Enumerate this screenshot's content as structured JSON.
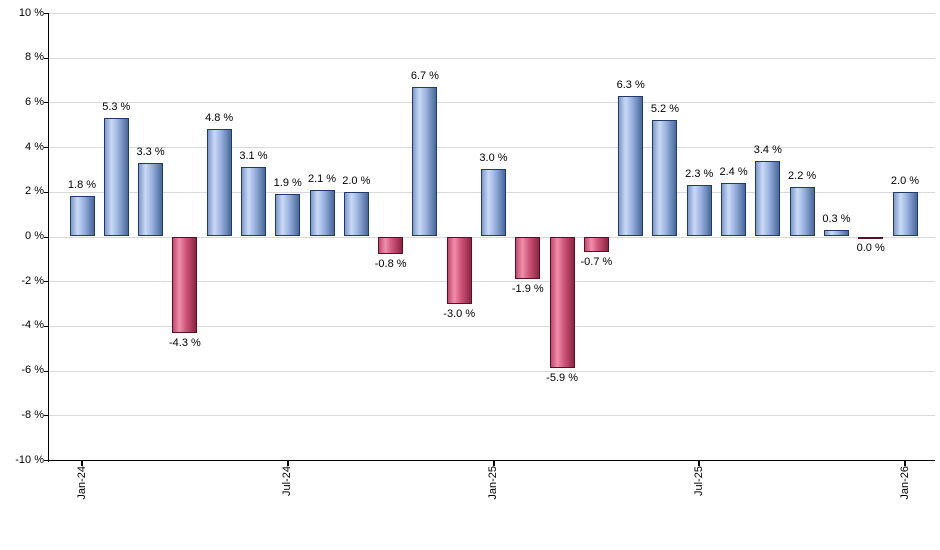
{
  "chart_data": {
    "type": "bar",
    "title": "",
    "xlabel": "",
    "ylabel": "",
    "unit": "%",
    "ylim": [
      -10,
      10
    ],
    "grid": true,
    "legend": null,
    "y_ticks": [
      {
        "value": 10,
        "label": "10 %"
      },
      {
        "value": 8,
        "label": "8 %"
      },
      {
        "value": 6,
        "label": "6 %"
      },
      {
        "value": 4,
        "label": "4 %"
      },
      {
        "value": 2,
        "label": "2 %"
      },
      {
        "value": 0,
        "label": "0 %"
      },
      {
        "value": -2,
        "label": "-2 %"
      },
      {
        "value": -4,
        "label": "-4 %"
      },
      {
        "value": -6,
        "label": "-6 %"
      },
      {
        "value": -8,
        "label": "-8 %"
      },
      {
        "value": -10,
        "label": "-10 %"
      }
    ],
    "x_ticks": [
      {
        "index": 0,
        "label": "Jan-24"
      },
      {
        "index": 6,
        "label": "Jul-24"
      },
      {
        "index": 12,
        "label": "Jan-25"
      },
      {
        "index": 18,
        "label": "Jul-25"
      },
      {
        "index": 24,
        "label": "Jan-26"
      }
    ],
    "bars": [
      {
        "category": "Jan-24",
        "value": 1.8,
        "label": "1.8 %",
        "color": "blue"
      },
      {
        "category": "Feb-24",
        "value": 5.3,
        "label": "5.3 %",
        "color": "blue"
      },
      {
        "category": "Mar-24",
        "value": 3.3,
        "label": "3.3 %",
        "color": "blue"
      },
      {
        "category": "Apr-24",
        "value": -4.3,
        "label": "-4.3 %",
        "color": "red"
      },
      {
        "category": "May-24",
        "value": 4.8,
        "label": "4.8 %",
        "color": "blue"
      },
      {
        "category": "Jun-24",
        "value": 3.1,
        "label": "3.1 %",
        "color": "blue"
      },
      {
        "category": "Jul-24",
        "value": 1.9,
        "label": "1.9 %",
        "color": "blue"
      },
      {
        "category": "Aug-24",
        "value": 2.1,
        "label": "2.1 %",
        "color": "blue"
      },
      {
        "category": "Sep-24",
        "value": 2.0,
        "label": "2.0 %",
        "color": "blue"
      },
      {
        "category": "Oct-24",
        "value": -0.8,
        "label": "-0.8 %",
        "color": "red"
      },
      {
        "category": "Nov-24",
        "value": 6.7,
        "label": "6.7 %",
        "color": "blue"
      },
      {
        "category": "Dec-24",
        "value": -3.0,
        "label": "-3.0 %",
        "color": "red"
      },
      {
        "category": "Jan-25",
        "value": 3.0,
        "label": "3.0 %",
        "color": "blue"
      },
      {
        "category": "Feb-25",
        "value": -1.9,
        "label": "-1.9 %",
        "color": "red"
      },
      {
        "category": "Mar-25",
        "value": -5.9,
        "label": "-5.9 %",
        "color": "red"
      },
      {
        "category": "Apr-25",
        "value": -0.7,
        "label": "-0.7 %",
        "color": "red"
      },
      {
        "category": "May-25",
        "value": 6.3,
        "label": "6.3 %",
        "color": "blue"
      },
      {
        "category": "Jun-25",
        "value": 5.2,
        "label": "5.2 %",
        "color": "blue"
      },
      {
        "category": "Jul-25",
        "value": 2.3,
        "label": "2.3 %",
        "color": "blue"
      },
      {
        "category": "Aug-25",
        "value": 2.4,
        "label": "2.4 %",
        "color": "blue"
      },
      {
        "category": "Sep-25",
        "value": 3.4,
        "label": "3.4 %",
        "color": "blue"
      },
      {
        "category": "Oct-25",
        "value": 2.2,
        "label": "2.2 %",
        "color": "blue"
      },
      {
        "category": "Nov-25",
        "value": 0.3,
        "label": "0.3 %",
        "color": "blue"
      },
      {
        "category": "Dec-25",
        "value": 0.0,
        "label": "0.0 %",
        "color": "red"
      },
      {
        "category": "Jan-26",
        "value": 2.0,
        "label": "2.0 %",
        "color": "blue"
      }
    ],
    "colors": {
      "blue_gradient": [
        "#7e99ca",
        "#c9daf4",
        "#9db4e0",
        "#47689e"
      ],
      "blue_border": "#1f3a6b",
      "red_gradient": [
        "#c4496e",
        "#ef8fac",
        "#d1577d",
        "#8e2342"
      ],
      "red_border": "#551127",
      "gridline": "#d9d9d9",
      "axis": "#000000",
      "text": "#000000",
      "background": "#ffffff"
    }
  }
}
